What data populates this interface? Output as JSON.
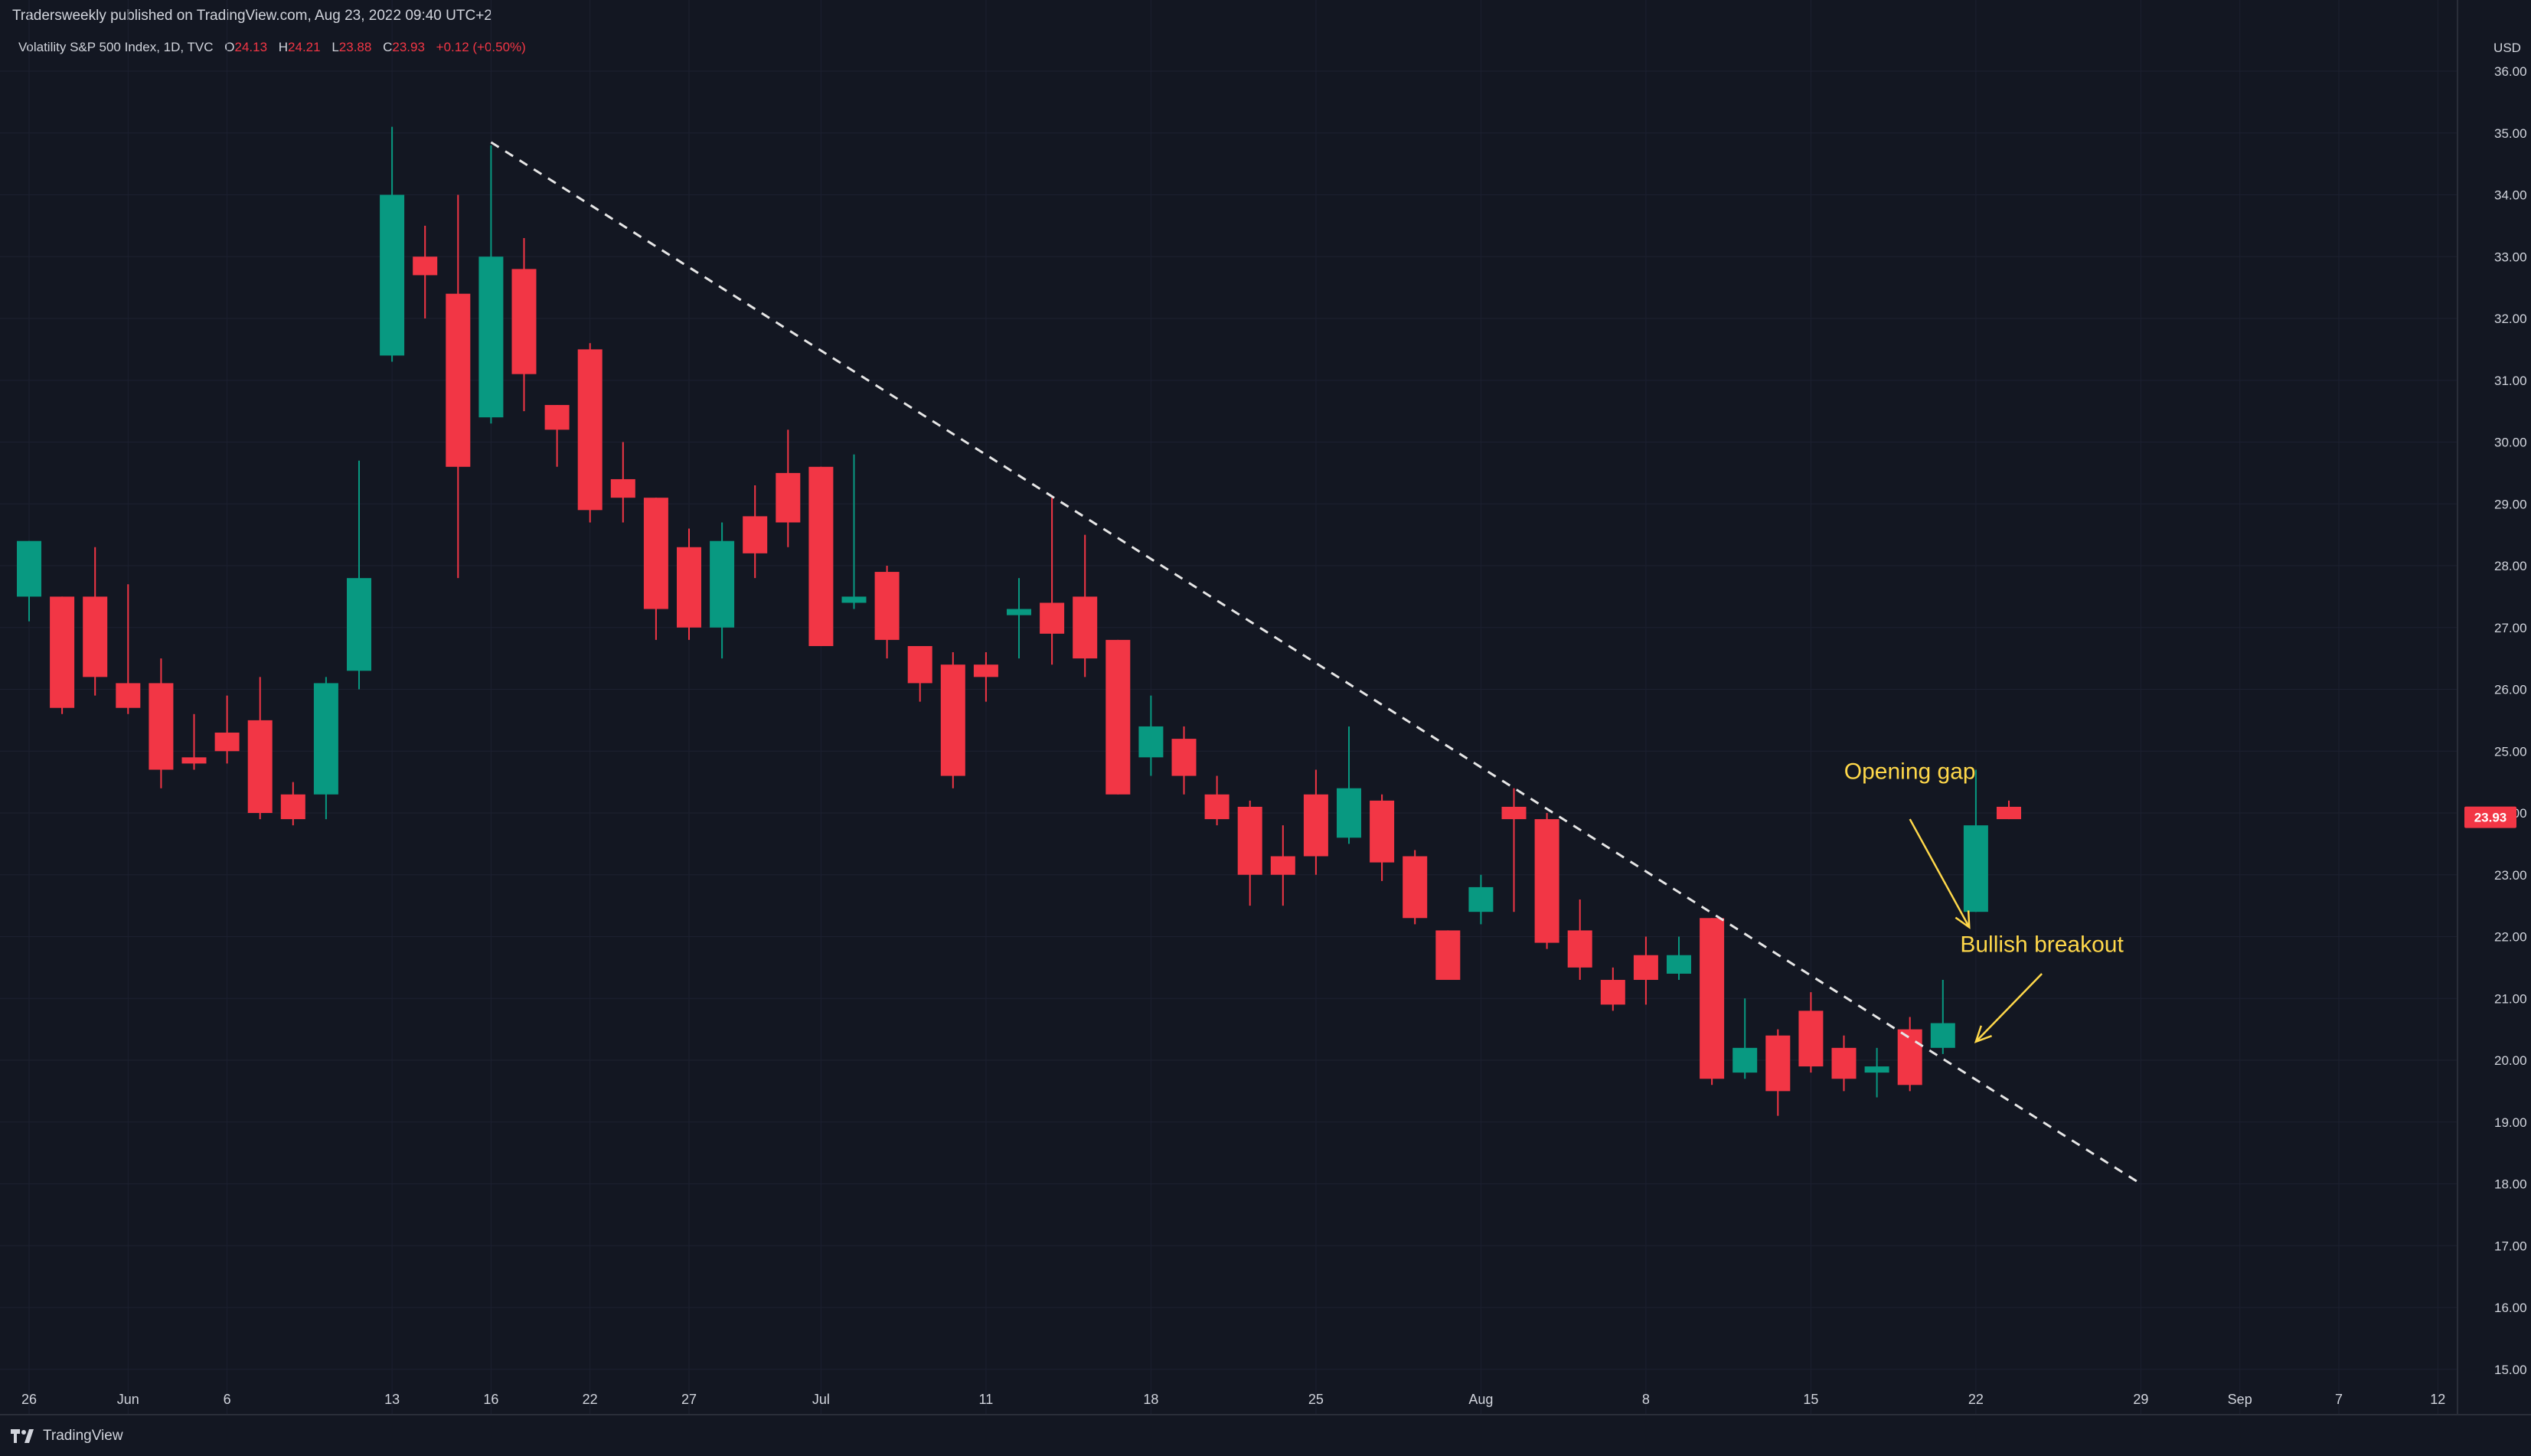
{
  "header": {
    "published": "Tradersweekly published on TradingView.com, Aug 23, 2022 09:40 UTC+2",
    "legend": {
      "symbol": "Volatility S&P 500 Index, 1D, TVC",
      "o_label": "O",
      "o_value": "24.13",
      "h_label": "H",
      "h_value": "24.21",
      "l_label": "L",
      "l_value": "23.88",
      "c_label": "C",
      "c_value": "23.93",
      "change": "+0.12 (+0.50%)"
    }
  },
  "footer": {
    "brand": "TradingView"
  },
  "colors": {
    "background": "#131722",
    "up": "#089981",
    "down": "#f23645",
    "text": "#d1d4dc",
    "annotation": "#ffd84a",
    "trendline": "#e6e6e6"
  },
  "chart_data": {
    "type": "candlestick",
    "currency": "USD",
    "last_price_label": "23.93",
    "ylim": [
      14.7,
      36.3
    ],
    "y_ticks": [
      "15.00",
      "16.00",
      "17.00",
      "18.00",
      "19.00",
      "20.00",
      "21.00",
      "22.00",
      "23.00",
      "24.00",
      "25.00",
      "26.00",
      "27.00",
      "28.00",
      "29.00",
      "30.00",
      "31.00",
      "32.00",
      "33.00",
      "34.00",
      "35.00",
      "36.00"
    ],
    "x_ticks": [
      {
        "label": "26",
        "index": 0
      },
      {
        "label": "Jun",
        "index": 3
      },
      {
        "label": "6",
        "index": 6
      },
      {
        "label": "13",
        "index": 11
      },
      {
        "label": "16",
        "index": 14
      },
      {
        "label": "22",
        "index": 17
      },
      {
        "label": "27",
        "index": 20
      },
      {
        "label": "Jul",
        "index": 24
      },
      {
        "label": "11",
        "index": 29
      },
      {
        "label": "18",
        "index": 34
      },
      {
        "label": "25",
        "index": 39
      },
      {
        "label": "Aug",
        "index": 44
      },
      {
        "label": "8",
        "index": 49
      },
      {
        "label": "15",
        "index": 54
      },
      {
        "label": "22",
        "index": 59
      },
      {
        "label": "29",
        "index": 64
      },
      {
        "label": "Sep",
        "index": 67
      },
      {
        "label": "7",
        "index": 70
      },
      {
        "label": "12",
        "index": 73
      }
    ],
    "candles": [
      {
        "o": 27.5,
        "h": 28.4,
        "l": 27.1,
        "c": 28.4
      },
      {
        "o": 27.5,
        "h": 27.5,
        "l": 25.6,
        "c": 25.7
      },
      {
        "o": 27.5,
        "h": 28.3,
        "l": 25.9,
        "c": 26.2
      },
      {
        "o": 26.1,
        "h": 27.7,
        "l": 25.6,
        "c": 25.7
      },
      {
        "o": 26.1,
        "h": 26.5,
        "l": 24.4,
        "c": 24.7
      },
      {
        "o": 24.9,
        "h": 25.6,
        "l": 24.7,
        "c": 24.8
      },
      {
        "o": 25.3,
        "h": 25.9,
        "l": 24.8,
        "c": 25.0
      },
      {
        "o": 25.5,
        "h": 26.2,
        "l": 23.9,
        "c": 24.0
      },
      {
        "o": 24.3,
        "h": 24.5,
        "l": 23.8,
        "c": 23.9
      },
      {
        "o": 24.3,
        "h": 26.2,
        "l": 23.9,
        "c": 26.1
      },
      {
        "o": 26.3,
        "h": 29.7,
        "l": 26.0,
        "c": 27.8
      },
      {
        "o": 31.4,
        "h": 35.1,
        "l": 31.3,
        "c": 34.0
      },
      {
        "o": 33.0,
        "h": 33.5,
        "l": 32.0,
        "c": 32.7
      },
      {
        "o": 32.4,
        "h": 34.0,
        "l": 27.8,
        "c": 29.6
      },
      {
        "o": 30.4,
        "h": 34.8,
        "l": 30.3,
        "c": 33.0
      },
      {
        "o": 32.8,
        "h": 33.3,
        "l": 30.5,
        "c": 31.1
      },
      {
        "o": 30.6,
        "h": 30.6,
        "l": 29.6,
        "c": 30.2
      },
      {
        "o": 31.5,
        "h": 31.6,
        "l": 28.7,
        "c": 28.9
      },
      {
        "o": 29.4,
        "h": 30.0,
        "l": 28.7,
        "c": 29.1
      },
      {
        "o": 29.1,
        "h": 29.1,
        "l": 26.8,
        "c": 27.3
      },
      {
        "o": 28.3,
        "h": 28.6,
        "l": 26.8,
        "c": 27.0
      },
      {
        "o": 27.0,
        "h": 28.7,
        "l": 26.5,
        "c": 28.4
      },
      {
        "o": 28.8,
        "h": 29.3,
        "l": 27.8,
        "c": 28.2
      },
      {
        "o": 29.5,
        "h": 30.2,
        "l": 28.3,
        "c": 28.7
      },
      {
        "o": 29.6,
        "h": 29.6,
        "l": 26.7,
        "c": 26.7
      },
      {
        "o": 27.4,
        "h": 29.8,
        "l": 27.3,
        "c": 27.5
      },
      {
        "o": 27.9,
        "h": 28.0,
        "l": 26.5,
        "c": 26.8
      },
      {
        "o": 26.7,
        "h": 26.7,
        "l": 25.8,
        "c": 26.1
      },
      {
        "o": 26.4,
        "h": 26.6,
        "l": 24.4,
        "c": 24.6
      },
      {
        "o": 26.4,
        "h": 26.6,
        "l": 25.8,
        "c": 26.2
      },
      {
        "o": 27.2,
        "h": 27.8,
        "l": 26.5,
        "c": 27.3
      },
      {
        "o": 27.4,
        "h": 29.1,
        "l": 26.4,
        "c": 26.9
      },
      {
        "o": 27.5,
        "h": 28.5,
        "l": 26.2,
        "c": 26.5
      },
      {
        "o": 26.8,
        "h": 26.8,
        "l": 24.3,
        "c": 24.3
      },
      {
        "o": 24.9,
        "h": 25.9,
        "l": 24.6,
        "c": 25.4
      },
      {
        "o": 25.2,
        "h": 25.4,
        "l": 24.3,
        "c": 24.6
      },
      {
        "o": 24.3,
        "h": 24.6,
        "l": 23.8,
        "c": 23.9
      },
      {
        "o": 24.1,
        "h": 24.2,
        "l": 22.5,
        "c": 23.0
      },
      {
        "o": 23.3,
        "h": 23.8,
        "l": 22.5,
        "c": 23.0
      },
      {
        "o": 24.3,
        "h": 24.7,
        "l": 23.0,
        "c": 23.3
      },
      {
        "o": 23.6,
        "h": 25.4,
        "l": 23.5,
        "c": 24.4
      },
      {
        "o": 24.2,
        "h": 24.3,
        "l": 22.9,
        "c": 23.2
      },
      {
        "o": 23.3,
        "h": 23.4,
        "l": 22.2,
        "c": 22.3
      },
      {
        "o": 22.1,
        "h": 22.1,
        "l": 21.3,
        "c": 21.3
      },
      {
        "o": 22.4,
        "h": 23.0,
        "l": 22.2,
        "c": 22.8
      },
      {
        "o": 24.1,
        "h": 24.4,
        "l": 22.4,
        "c": 23.9
      },
      {
        "o": 23.9,
        "h": 24.0,
        "l": 21.8,
        "c": 21.9
      },
      {
        "o": 22.1,
        "h": 22.6,
        "l": 21.3,
        "c": 21.5
      },
      {
        "o": 21.3,
        "h": 21.5,
        "l": 20.8,
        "c": 20.9
      },
      {
        "o": 21.7,
        "h": 22.0,
        "l": 20.9,
        "c": 21.3
      },
      {
        "o": 21.4,
        "h": 22.0,
        "l": 21.3,
        "c": 21.7
      },
      {
        "o": 22.3,
        "h": 22.3,
        "l": 19.6,
        "c": 19.7
      },
      {
        "o": 19.8,
        "h": 21.0,
        "l": 19.7,
        "c": 20.2
      },
      {
        "o": 20.4,
        "h": 20.5,
        "l": 19.1,
        "c": 19.5
      },
      {
        "o": 20.8,
        "h": 21.1,
        "l": 19.8,
        "c": 19.9
      },
      {
        "o": 20.2,
        "h": 20.4,
        "l": 19.5,
        "c": 19.7
      },
      {
        "o": 19.8,
        "h": 20.2,
        "l": 19.4,
        "c": 19.9
      },
      {
        "o": 20.5,
        "h": 20.7,
        "l": 19.5,
        "c": 19.6
      },
      {
        "o": 20.2,
        "h": 21.3,
        "l": 20.1,
        "c": 20.6
      },
      {
        "o": 22.4,
        "h": 24.7,
        "l": 22.4,
        "c": 23.8
      },
      {
        "o": 24.1,
        "h": 24.2,
        "l": 23.9,
        "c": 23.9
      }
    ],
    "trendline": {
      "from": {
        "index": 14,
        "value": 34.85
      },
      "to": {
        "index": 64,
        "value": 18.0
      }
    },
    "annotations": [
      {
        "text": "Opening gap",
        "label_at": {
          "index": 57.0,
          "value": 24.55
        },
        "arrow_from": {
          "index": 57.0,
          "value": 23.9
        },
        "arrow_to": {
          "index": 58.8,
          "value": 22.15
        }
      },
      {
        "text": "Bullish breakout",
        "label_at": {
          "index": 61.0,
          "value": 21.75
        },
        "arrow_from": {
          "index": 61.0,
          "value": 21.4
        },
        "arrow_to": {
          "index": 59.0,
          "value": 20.3
        }
      }
    ]
  }
}
